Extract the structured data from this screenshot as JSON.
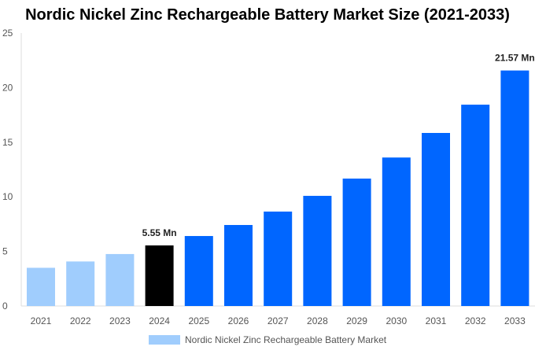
{
  "chart_data": {
    "type": "bar",
    "title": "Nordic Nickel Zinc Rechargeable Battery Market Size (2021-2033)",
    "categories": [
      "2021",
      "2022",
      "2023",
      "2024",
      "2025",
      "2026",
      "2027",
      "2028",
      "2029",
      "2030",
      "2031",
      "2032",
      "2033"
    ],
    "series": [
      {
        "name": "Nordic Nickel Zinc Rechargeable Battery Market",
        "values": [
          3.5,
          4.08,
          4.76,
          5.55,
          6.41,
          7.42,
          8.65,
          10.09,
          11.67,
          13.6,
          15.85,
          18.44,
          21.57
        ]
      }
    ],
    "data_labels": {
      "2024": "5.55 Mn",
      "2033": "21.57 Mn"
    },
    "ylim": [
      0,
      25
    ],
    "yticks": [
      0,
      5,
      10,
      15,
      20,
      25
    ],
    "xlabel": "",
    "ylabel": "",
    "grid": false,
    "legend": "bottom",
    "colors": {
      "historical": "#a0cdfd",
      "current": "#000000",
      "forecast": "#0066ff"
    }
  }
}
